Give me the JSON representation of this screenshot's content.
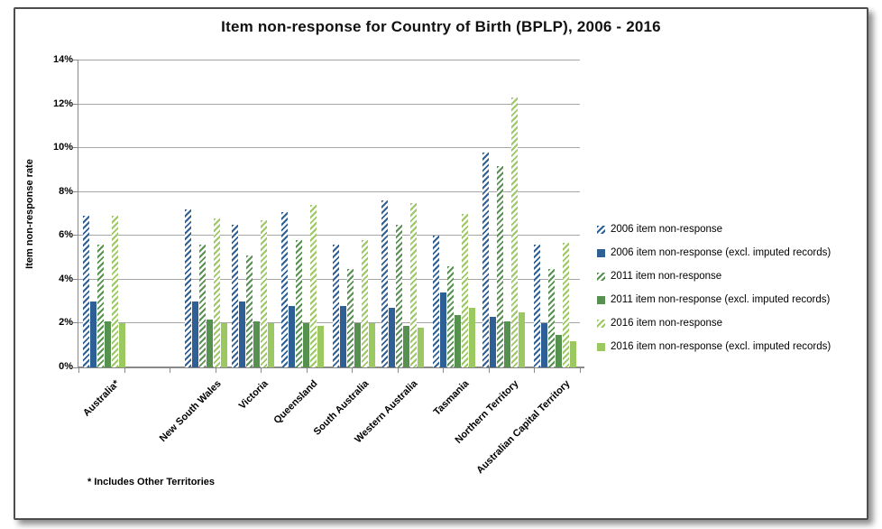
{
  "chart_data": {
    "type": "bar",
    "title": "Item non-response for Country of Birth (BPLP), 2006 - 2016",
    "ylabel": "Item non-response rate",
    "xlabel": "",
    "ylim": [
      0,
      14
    ],
    "ytick_labels": [
      "0%",
      "2%",
      "4%",
      "6%",
      "8%",
      "10%",
      "12%",
      "14%"
    ],
    "grid": true,
    "legend_position": "right",
    "footnote": "* Includes Other Territories",
    "categories": [
      "Australia*",
      "New South Wales",
      "Victoria",
      "Queensland",
      "South Australia",
      "Western Australia",
      "Tasmania",
      "Northern Territory",
      "Australian Capital Territory"
    ],
    "series": [
      {
        "name": "2006 item non-response",
        "color": "#2E6096",
        "pattern": "hatch",
        "values": [
          6.9,
          7.2,
          6.5,
          7.1,
          5.6,
          7.6,
          6.0,
          9.8,
          5.6
        ]
      },
      {
        "name": "2006 item non-response (excl. imputed records)",
        "color": "#2E6096",
        "pattern": "solid",
        "values": [
          3.0,
          3.0,
          3.0,
          2.8,
          2.8,
          2.7,
          3.4,
          2.3,
          2.0
        ]
      },
      {
        "name": "2011 item non-response",
        "color": "#579150",
        "pattern": "hatch",
        "values": [
          5.6,
          5.6,
          5.1,
          5.8,
          4.5,
          6.5,
          4.6,
          9.2,
          4.5
        ]
      },
      {
        "name": "2011 item non-response (excl. imputed records)",
        "color": "#579150",
        "pattern": "solid",
        "values": [
          2.1,
          2.2,
          2.1,
          2.0,
          2.0,
          1.9,
          2.4,
          2.1,
          1.5
        ]
      },
      {
        "name": "2016 item non-response",
        "color": "#9CC862",
        "pattern": "hatch",
        "values": [
          6.9,
          6.8,
          6.7,
          7.4,
          5.8,
          7.5,
          7.0,
          12.3,
          5.7
        ]
      },
      {
        "name": "2016 item non-response (excl. imputed records)",
        "color": "#9CC862",
        "pattern": "solid",
        "values": [
          2.0,
          2.0,
          2.0,
          1.9,
          2.0,
          1.8,
          2.7,
          2.5,
          1.2
        ]
      }
    ]
  },
  "colors": {
    "gridline": "#A6A6A6",
    "axis": "#898989",
    "frame_border": "#4D4D4D",
    "background": "#FFFFFF"
  }
}
